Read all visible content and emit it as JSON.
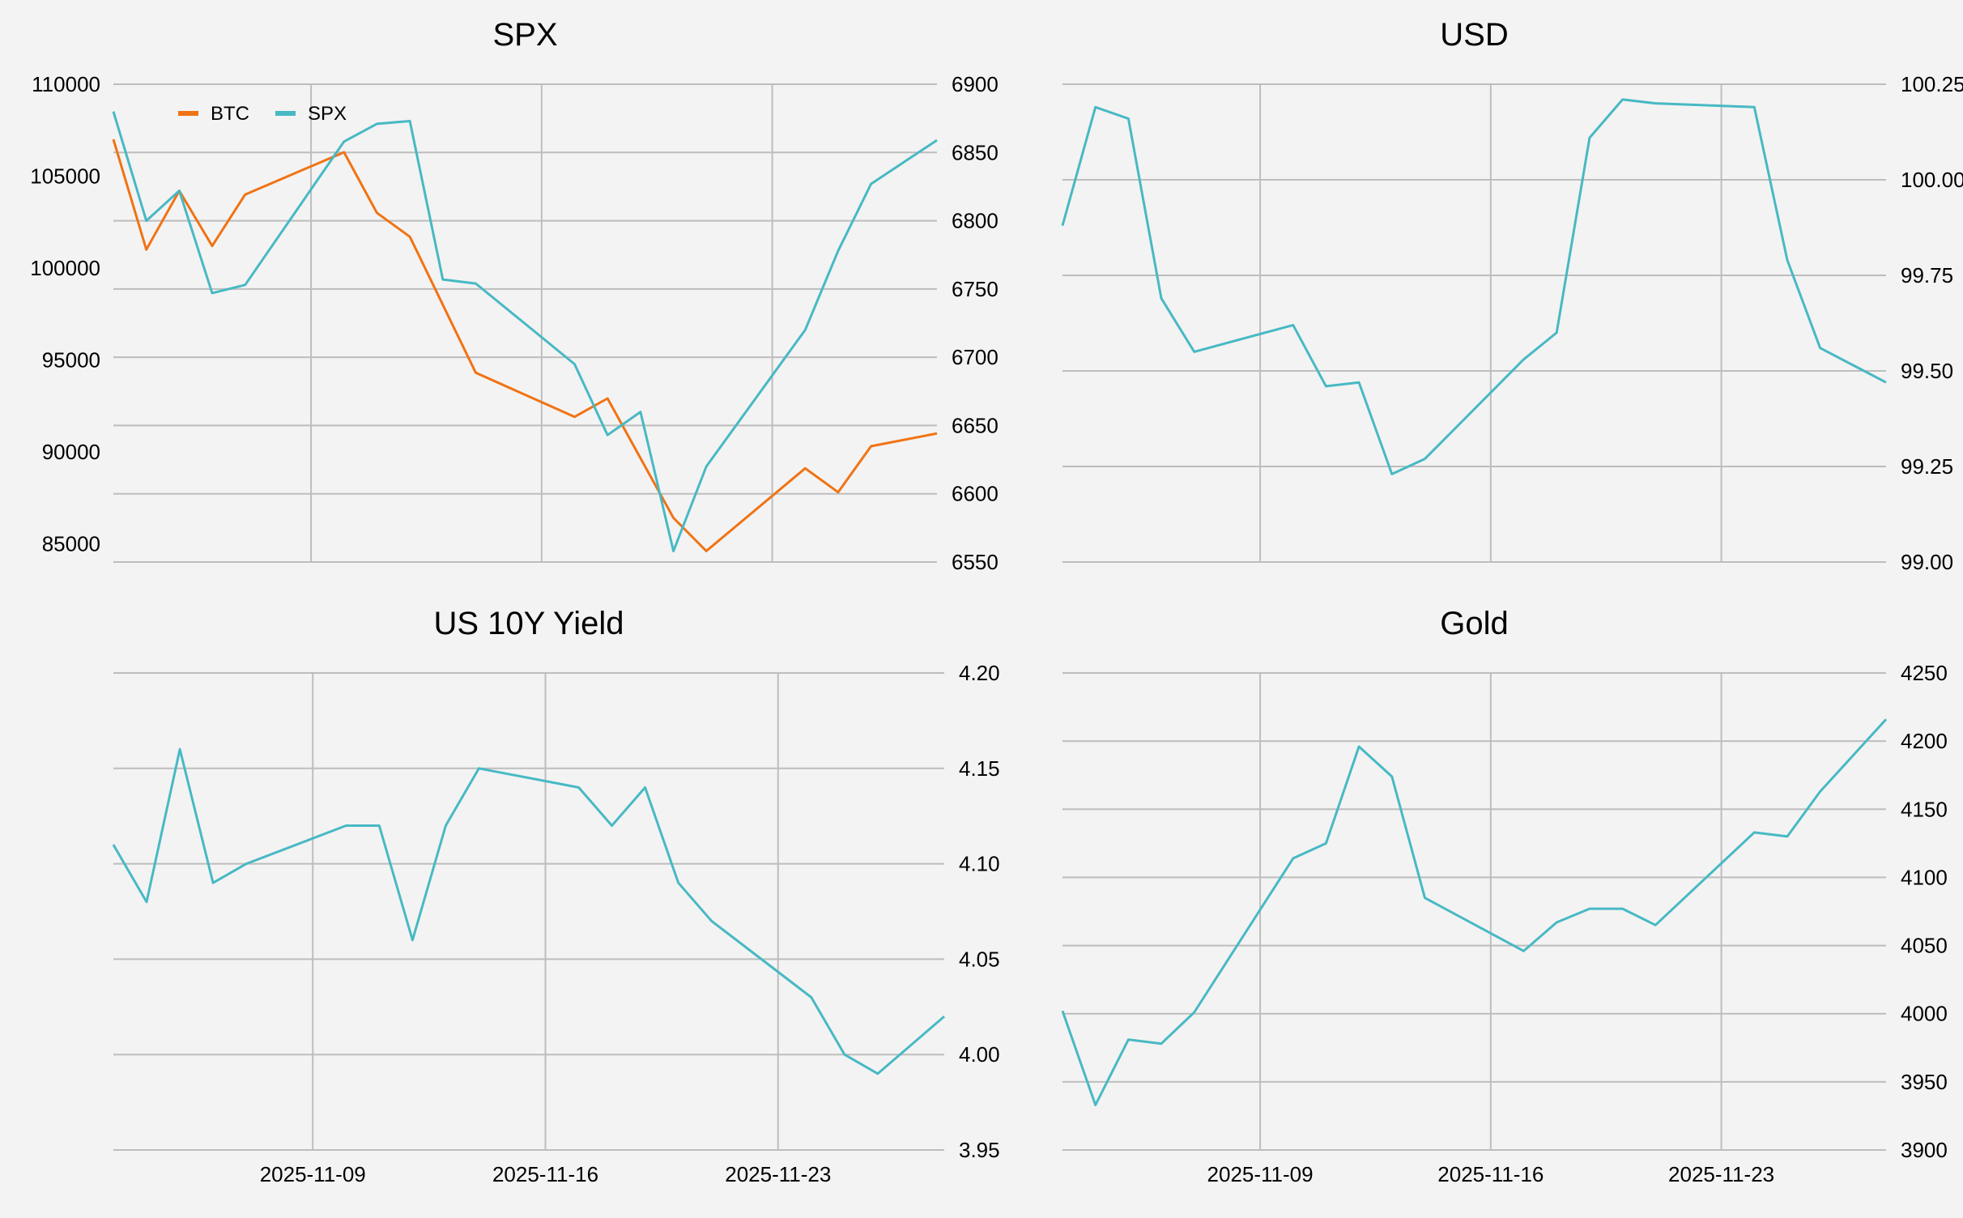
{
  "chart_data": [
    {
      "type": "line",
      "title": "SPX",
      "x": [
        "2025-11-03",
        "2025-11-04",
        "2025-11-05",
        "2025-11-06",
        "2025-11-07",
        "2025-11-10",
        "2025-11-11",
        "2025-11-12",
        "2025-11-13",
        "2025-11-14",
        "2025-11-17",
        "2025-11-18",
        "2025-11-19",
        "2025-11-20",
        "2025-11-21",
        "2025-11-24",
        "2025-11-25",
        "2025-11-26",
        "2025-11-28"
      ],
      "series": [
        {
          "name": "BTC",
          "axis": "left",
          "color": "#f07314",
          "x": [
            "2025-11-03",
            "2025-11-04",
            "2025-11-05",
            "2025-11-06",
            "2025-11-07",
            "2025-11-10",
            "2025-11-11",
            "2025-11-12",
            "2025-11-14",
            "2025-11-17",
            "2025-11-18",
            "2025-11-20",
            "2025-11-21",
            "2025-11-24",
            "2025-11-25",
            "2025-11-26",
            "2025-11-28"
          ],
          "values": [
            107000,
            101000,
            104200,
            101200,
            104000,
            106300,
            103000,
            101700,
            94300,
            91900,
            92900,
            86400,
            84600,
            89100,
            87800,
            90300,
            91000
          ]
        },
        {
          "name": "SPX",
          "axis": "right",
          "color": "#47b9c4",
          "x": [
            "2025-11-03",
            "2025-11-04",
            "2025-11-05",
            "2025-11-06",
            "2025-11-07",
            "2025-11-10",
            "2025-11-11",
            "2025-11-12",
            "2025-11-13",
            "2025-11-14",
            "2025-11-17",
            "2025-11-18",
            "2025-11-19",
            "2025-11-20",
            "2025-11-21",
            "2025-11-24",
            "2025-11-25",
            "2025-11-26",
            "2025-11-28"
          ],
          "values": [
            6880,
            6800,
            6822,
            6747,
            6753,
            6858,
            6871,
            6873,
            6757,
            6754,
            6695,
            6643,
            6660,
            6558,
            6620,
            6720,
            6778,
            6827,
            6859
          ]
        }
      ],
      "y_left": {
        "ylim": [
          84000,
          110000
        ],
        "ticks": [
          "85000",
          "90000",
          "95000",
          "100000",
          "105000",
          "110000"
        ],
        "tick_values": [
          85000,
          90000,
          95000,
          100000,
          105000,
          110000
        ]
      },
      "y_right": {
        "ylim": [
          6550,
          6900
        ],
        "ticks": [
          "6550",
          "6600",
          "6650",
          "6700",
          "6750",
          "6800",
          "6850",
          "6900"
        ],
        "tick_values": [
          6550,
          6600,
          6650,
          6700,
          6750,
          6800,
          6850,
          6900
        ]
      },
      "legend": {
        "position": "top-left",
        "entries": [
          "BTC",
          "SPX"
        ]
      },
      "grid": true
    },
    {
      "type": "line",
      "title": "USD",
      "series": [
        {
          "name": "",
          "axis": "right",
          "color": "#47b9c4",
          "x": [
            "2025-11-03",
            "2025-11-04",
            "2025-11-05",
            "2025-11-06",
            "2025-11-07",
            "2025-11-10",
            "2025-11-11",
            "2025-11-12",
            "2025-11-13",
            "2025-11-14",
            "2025-11-17",
            "2025-11-18",
            "2025-11-19",
            "2025-11-20",
            "2025-11-21",
            "2025-11-24",
            "2025-11-25",
            "2025-11-26",
            "2025-11-28"
          ],
          "values": [
            99.88,
            100.19,
            100.16,
            99.69,
            99.55,
            99.62,
            99.46,
            99.47,
            99.23,
            99.27,
            99.53,
            99.6,
            100.11,
            100.21,
            100.2,
            100.19,
            99.79,
            99.56,
            99.47
          ]
        }
      ],
      "y_right": {
        "ylim": [
          99.0,
          100.25
        ],
        "ticks": [
          "99.00",
          "99.25",
          "99.50",
          "99.75",
          "100.00",
          "100.25"
        ],
        "tick_values": [
          99.0,
          99.25,
          99.5,
          99.75,
          100.0,
          100.25
        ]
      },
      "grid": true
    },
    {
      "type": "line",
      "title": "US 10Y Yield",
      "series": [
        {
          "name": "",
          "axis": "right",
          "color": "#47b9c4",
          "x": [
            "2025-11-03",
            "2025-11-04",
            "2025-11-05",
            "2025-11-06",
            "2025-11-07",
            "2025-11-10",
            "2025-11-11",
            "2025-11-12",
            "2025-11-13",
            "2025-11-14",
            "2025-11-17",
            "2025-11-18",
            "2025-11-19",
            "2025-11-20",
            "2025-11-21",
            "2025-11-24",
            "2025-11-25",
            "2025-11-26",
            "2025-11-28"
          ],
          "values": [
            4.11,
            4.08,
            4.16,
            4.09,
            4.1,
            4.12,
            4.12,
            4.06,
            4.12,
            4.15,
            4.14,
            4.12,
            4.14,
            4.09,
            4.07,
            4.03,
            4.0,
            3.99,
            4.02
          ]
        }
      ],
      "y_right": {
        "ylim": [
          3.95,
          4.2
        ],
        "ticks": [
          "3.95",
          "4.00",
          "4.05",
          "4.10",
          "4.15",
          "4.20"
        ],
        "tick_values": [
          3.95,
          4.0,
          4.05,
          4.1,
          4.15,
          4.2
        ]
      },
      "x_ticks": [
        "2025-11-09",
        "2025-11-16",
        "2025-11-23"
      ],
      "grid": true
    },
    {
      "type": "line",
      "title": "Gold",
      "series": [
        {
          "name": "",
          "axis": "right",
          "color": "#47b9c4",
          "x": [
            "2025-11-03",
            "2025-11-04",
            "2025-11-05",
            "2025-11-06",
            "2025-11-07",
            "2025-11-10",
            "2025-11-11",
            "2025-11-12",
            "2025-11-13",
            "2025-11-14",
            "2025-11-17",
            "2025-11-18",
            "2025-11-19",
            "2025-11-20",
            "2025-11-21",
            "2025-11-24",
            "2025-11-25",
            "2025-11-26",
            "2025-11-28"
          ],
          "values": [
            4002,
            3933,
            3981,
            3978,
            4001,
            4114,
            4125,
            4196,
            4174,
            4085,
            4046,
            4067,
            4077,
            4077,
            4065,
            4133,
            4130,
            4163,
            4216
          ]
        }
      ],
      "y_right": {
        "ylim": [
          3900,
          4250
        ],
        "ticks": [
          "3900",
          "3950",
          "4000",
          "4050",
          "4100",
          "4150",
          "4200",
          "4250"
        ],
        "tick_values": [
          3900,
          3950,
          4000,
          4050,
          4100,
          4150,
          4200,
          4250
        ]
      },
      "x_ticks": [
        "2025-11-09",
        "2025-11-16",
        "2025-11-23"
      ],
      "grid": true
    }
  ],
  "shared_x": {
    "range": [
      "2025-11-03",
      "2025-11-28"
    ],
    "ticks": [
      "2025-11-09",
      "2025-11-16",
      "2025-11-23"
    ]
  }
}
